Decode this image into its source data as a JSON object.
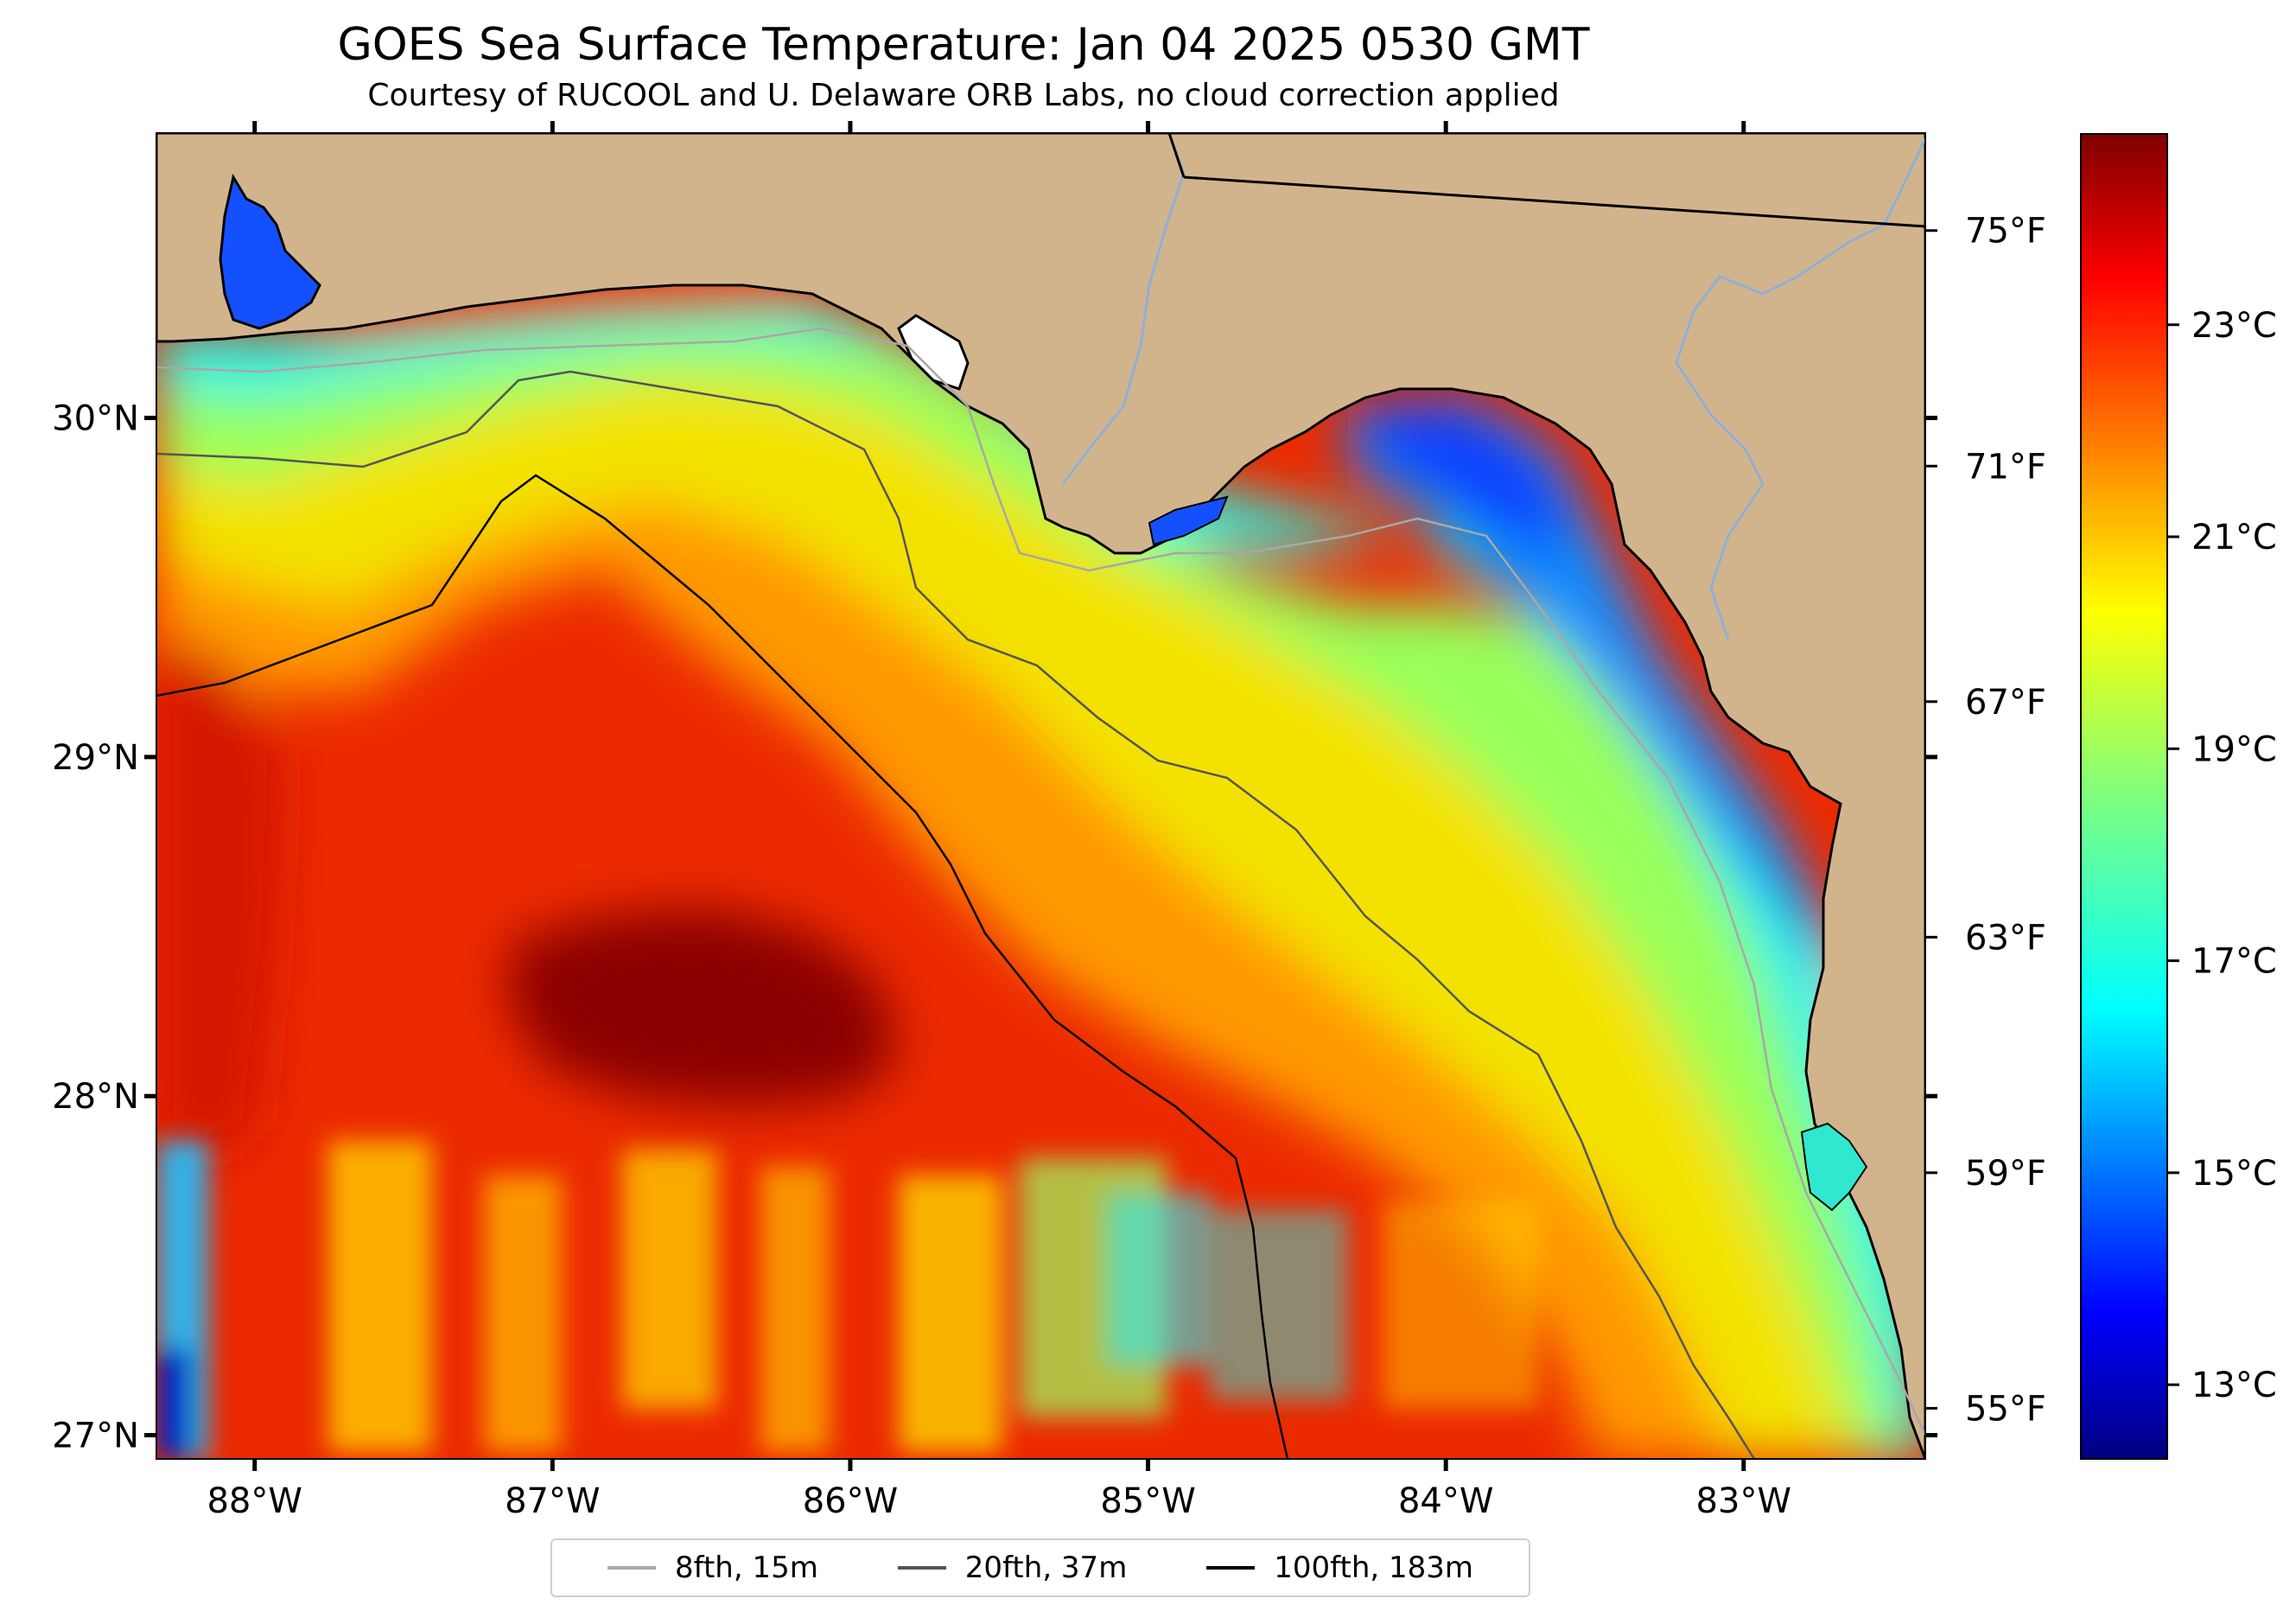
{
  "title": "GOES Sea Surface Temperature: Jan 04 2025 0530 GMT",
  "subtitle": "Courtesy of RUCOOL and U. Delaware ORB Labs, no cloud correction applied",
  "map": {
    "lon_range": [
      -88.33,
      -82.39
    ],
    "lat_range": [
      26.93,
      30.84
    ],
    "lon_ticks": [
      {
        "value": -88,
        "label": "88°W"
      },
      {
        "value": -87,
        "label": "87°W"
      },
      {
        "value": -86,
        "label": "86°W"
      },
      {
        "value": -85,
        "label": "85°W"
      },
      {
        "value": -84,
        "label": "84°W"
      },
      {
        "value": -83,
        "label": "83°W"
      }
    ],
    "lat_ticks": [
      {
        "value": 30,
        "label": "30°N"
      },
      {
        "value": 29,
        "label": "29°N"
      },
      {
        "value": 28,
        "label": "28°N"
      },
      {
        "value": 27,
        "label": "27°N"
      }
    ],
    "fahrenheit_ticks": [
      {
        "value": 75,
        "label": "75°F"
      },
      {
        "value": 71,
        "label": "71°F"
      },
      {
        "value": 67,
        "label": "67°F"
      },
      {
        "value": 63,
        "label": "63°F"
      },
      {
        "value": 59,
        "label": "59°F"
      },
      {
        "value": 55,
        "label": "55°F"
      }
    ],
    "colors": {
      "land": "#d2b48c",
      "coast": "#000000",
      "river": "#8fb0d6"
    }
  },
  "colorbar": {
    "range_c": [
      12.3,
      24.8
    ],
    "ticks": [
      {
        "value": 23,
        "label": "23°C"
      },
      {
        "value": 21,
        "label": "21°C"
      },
      {
        "value": 19,
        "label": "19°C"
      },
      {
        "value": 17,
        "label": "17°C"
      },
      {
        "value": 15,
        "label": "15°C"
      },
      {
        "value": 13,
        "label": "13°C"
      }
    ],
    "colormap": "jet"
  },
  "legend": {
    "items": [
      {
        "label": "8fth, 15m",
        "color": "#a8a8a8"
      },
      {
        "label": "20fth, 37m",
        "color": "#555555"
      },
      {
        "label": "100fth, 183m",
        "color": "#000000"
      }
    ]
  }
}
